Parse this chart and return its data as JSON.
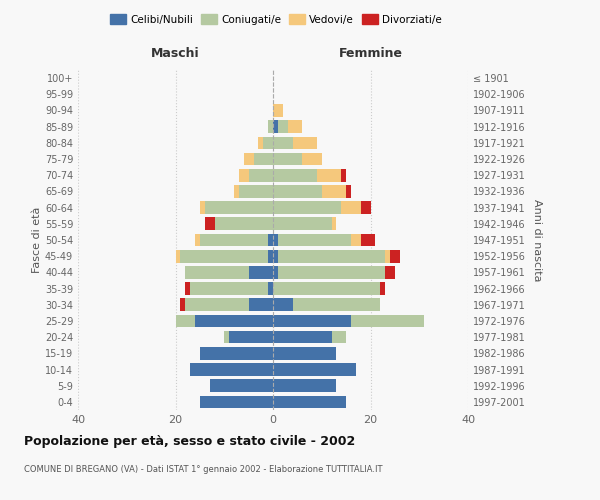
{
  "age_groups": [
    "0-4",
    "5-9",
    "10-14",
    "15-19",
    "20-24",
    "25-29",
    "30-34",
    "35-39",
    "40-44",
    "45-49",
    "50-54",
    "55-59",
    "60-64",
    "65-69",
    "70-74",
    "75-79",
    "80-84",
    "85-89",
    "90-94",
    "95-99",
    "100+"
  ],
  "birth_years": [
    "1997-2001",
    "1992-1996",
    "1987-1991",
    "1982-1986",
    "1977-1981",
    "1972-1976",
    "1967-1971",
    "1962-1966",
    "1957-1961",
    "1952-1956",
    "1947-1951",
    "1942-1946",
    "1937-1941",
    "1932-1936",
    "1927-1931",
    "1922-1926",
    "1917-1921",
    "1912-1916",
    "1907-1911",
    "1902-1906",
    "≤ 1901"
  ],
  "maschi": {
    "celibi": [
      15,
      13,
      17,
      15,
      9,
      16,
      5,
      1,
      5,
      1,
      1,
      0,
      0,
      0,
      0,
      0,
      0,
      0,
      0,
      0,
      0
    ],
    "coniugati": [
      0,
      0,
      0,
      0,
      1,
      4,
      13,
      16,
      13,
      18,
      14,
      12,
      14,
      7,
      5,
      4,
      2,
      1,
      0,
      0,
      0
    ],
    "vedovi": [
      0,
      0,
      0,
      0,
      0,
      0,
      0,
      0,
      0,
      1,
      1,
      0,
      1,
      1,
      2,
      2,
      1,
      0,
      0,
      0,
      0
    ],
    "divorziati": [
      0,
      0,
      0,
      0,
      0,
      0,
      1,
      1,
      0,
      0,
      0,
      2,
      0,
      0,
      0,
      0,
      0,
      0,
      0,
      0,
      0
    ]
  },
  "femmine": {
    "nubili": [
      15,
      13,
      17,
      13,
      12,
      16,
      4,
      0,
      1,
      1,
      1,
      0,
      0,
      0,
      0,
      0,
      0,
      1,
      0,
      0,
      0
    ],
    "coniugate": [
      0,
      0,
      0,
      0,
      3,
      15,
      18,
      22,
      22,
      22,
      15,
      12,
      14,
      10,
      9,
      6,
      4,
      2,
      0,
      0,
      0
    ],
    "vedove": [
      0,
      0,
      0,
      0,
      0,
      0,
      0,
      0,
      0,
      1,
      2,
      1,
      4,
      5,
      5,
      4,
      5,
      3,
      2,
      0,
      0
    ],
    "divorziate": [
      0,
      0,
      0,
      0,
      0,
      0,
      0,
      1,
      2,
      2,
      3,
      0,
      2,
      1,
      1,
      0,
      0,
      0,
      0,
      0,
      0
    ]
  },
  "colors": {
    "celibi": "#4472a8",
    "coniugati": "#b5c9a1",
    "vedovi": "#f5c87c",
    "divorziati": "#cc2222"
  },
  "xlim": 40,
  "title": "Popolazione per età, sesso e stato civile - 2002",
  "subtitle": "COMUNE DI BREGANO (VA) - Dati ISTAT 1° gennaio 2002 - Elaborazione TUTTITALIA.IT",
  "xlabel_left": "Maschi",
  "xlabel_right": "Femmine",
  "ylabel_left": "Fasce di età",
  "ylabel_right": "Anni di nascita",
  "legend_labels": [
    "Celibi/Nubili",
    "Coniugati/e",
    "Vedovi/e",
    "Divorziati/e"
  ],
  "bg_color": "#f8f8f8",
  "grid_color": "#cccccc"
}
